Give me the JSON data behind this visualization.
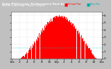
{
  "title": "Solar PV/Inverter Performance East Array",
  "subtitle": "Actual & Average Power Output",
  "bg_color": "#c0c0c0",
  "plot_bg": "#ffffff",
  "bar_color": "#ff0000",
  "avg_line_color": "#00cccc",
  "grid_color": "#aaaaaa",
  "text_color": "#000000",
  "num_bars": 108,
  "bar_heights": [
    0.0,
    0.0,
    0.0,
    0.0,
    0.0,
    0.0,
    0.0,
    0.0,
    0.0,
    0.0,
    0.02,
    0.08,
    0.15,
    0.25,
    0.35,
    0.2,
    0.55,
    0.7,
    0.9,
    0.75,
    1.1,
    1.4,
    1.2,
    1.7,
    1.5,
    2.0,
    1.8,
    2.4,
    2.2,
    2.7,
    2.5,
    3.1,
    2.9,
    3.55,
    3.3,
    3.9,
    3.65,
    4.2,
    3.95,
    4.6,
    4.3,
    4.8,
    4.55,
    5.1,
    4.85,
    5.3,
    5.05,
    5.5,
    5.2,
    5.6,
    5.7,
    5.85,
    5.6,
    5.9,
    5.7,
    5.95,
    5.75,
    6.0,
    5.8,
    5.95,
    5.75,
    5.88,
    5.65,
    5.8,
    5.55,
    5.7,
    5.4,
    5.55,
    5.2,
    5.35,
    4.95,
    5.1,
    4.7,
    4.85,
    4.4,
    4.55,
    4.1,
    4.25,
    3.8,
    3.95,
    3.45,
    3.6,
    3.1,
    3.25,
    2.75,
    2.85,
    2.4,
    2.5,
    2.05,
    2.15,
    1.7,
    1.8,
    1.4,
    1.5,
    1.1,
    1.2,
    0.8,
    0.55,
    0.35,
    0.2,
    0.1,
    0.05,
    0.02,
    0.0,
    0.0,
    0.0,
    0.0,
    0.0
  ],
  "ymax": 6.5,
  "avg_value": 1.5,
  "xlabel_fontsize": 3.0,
  "ylabel_fontsize": 3.0,
  "tick_color": "#000000",
  "legend_actual_color": "#ff0000",
  "legend_avg_color": "#00aaaa",
  "yticks": [
    0,
    1,
    2,
    3,
    4,
    5,
    6
  ],
  "ytick_labels": [
    "0",
    "1",
    "2",
    "3",
    "4",
    "5",
    "6"
  ],
  "xtick_labels": [
    "12a",
    "2",
    "4",
    "6",
    "8",
    "10",
    "12p",
    "2",
    "4",
    "6",
    "8",
    "10",
    "12a"
  ],
  "header_bg": "#404040",
  "header_text_color": "#ffffff",
  "header_title": "Solar PV/Inverter Performance East Array",
  "header_subtitle": "Actual & Average Power Output"
}
